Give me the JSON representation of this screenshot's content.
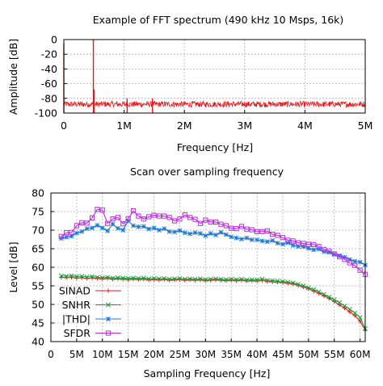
{
  "chart_data": [
    {
      "type": "line",
      "title": "Example of FFT spectrum (490 kHz 10 Msps, 16k)",
      "xlabel": "Frequency [Hz]",
      "ylabel": "Amplitude [dB]",
      "xlim": [
        0,
        5000000
      ],
      "ylim": [
        -100,
        0
      ],
      "x_ticks": [
        0,
        1000000,
        2000000,
        3000000,
        4000000,
        5000000
      ],
      "x_tick_labels": [
        "0",
        "1M",
        "2M",
        "3M",
        "4M",
        "5M"
      ],
      "y_ticks": [
        0,
        -20,
        -40,
        -60,
        -80,
        -100
      ],
      "y_tick_labels": [
        "0",
        "-20",
        "-40",
        "-60",
        "-80",
        "-100"
      ],
      "grid": true,
      "series": [
        {
          "color": "#e41a1c",
          "noise_floor_db": [
            -92,
            -84
          ],
          "spikes": [
            {
              "x": 0,
              "y": -5
            },
            {
              "x": 490000,
              "y": 0
            },
            {
              "x": 500000,
              "y": -68
            },
            {
              "x": 1050000,
              "y": -80
            },
            {
              "x": 1470000,
              "y": -80
            }
          ]
        }
      ]
    },
    {
      "type": "line",
      "title": "Scan over sampling frequency",
      "xlabel": "Sampling Frequency [Hz]",
      "ylabel": "Level [dB]",
      "xlim": [
        0,
        61000000
      ],
      "ylim": [
        40,
        80
      ],
      "x_ticks": [
        0,
        5000000,
        10000000,
        15000000,
        20000000,
        25000000,
        30000000,
        35000000,
        40000000,
        45000000,
        50000000,
        55000000,
        60000000
      ],
      "x_tick_labels": [
        "0",
        "5M",
        "10M",
        "15M",
        "20M",
        "25M",
        "30M",
        "35M",
        "40M",
        "45M",
        "50M",
        "55M",
        "60M"
      ],
      "y_ticks": [
        40,
        45,
        50,
        55,
        60,
        65,
        70,
        75,
        80
      ],
      "y_tick_labels": [
        "40",
        "45",
        "50",
        "55",
        "60",
        "65",
        "70",
        "75",
        "80"
      ],
      "grid": true,
      "legend_position": "bottom-left",
      "x": [
        2000000,
        3000000,
        4000000,
        5000000,
        6000000,
        7000000,
        8000000,
        9000000,
        10000000,
        11000000,
        12000000,
        13000000,
        14000000,
        15000000,
        16000000,
        17000000,
        18000000,
        19000000,
        20000000,
        21000000,
        22000000,
        23000000,
        24000000,
        25000000,
        26000000,
        27000000,
        28000000,
        29000000,
        30000000,
        31000000,
        32000000,
        33000000,
        34000000,
        35000000,
        36000000,
        37000000,
        38000000,
        39000000,
        40000000,
        41000000,
        42000000,
        43000000,
        44000000,
        45000000,
        46000000,
        47000000,
        48000000,
        49000000,
        50000000,
        51000000,
        52000000,
        53000000,
        54000000,
        55000000,
        56000000,
        57000000,
        58000000,
        59000000,
        60000000,
        61000000
      ],
      "series": [
        {
          "name": "SINAD",
          "color": "#e41a1c",
          "marker": "plus",
          "values": [
            57.3,
            57.2,
            57.3,
            57.1,
            57.2,
            57.0,
            57.1,
            57.0,
            56.9,
            57.0,
            56.8,
            56.9,
            56.8,
            56.7,
            56.8,
            56.7,
            56.8,
            56.6,
            56.7,
            56.6,
            56.7,
            56.5,
            56.6,
            56.7,
            56.5,
            56.6,
            56.5,
            56.6,
            56.4,
            56.5,
            56.6,
            56.5,
            56.4,
            56.5,
            56.4,
            56.5,
            56.3,
            56.4,
            56.3,
            56.5,
            56.2,
            56.1,
            56.0,
            55.9,
            55.7,
            55.5,
            55.1,
            54.7,
            54.2,
            53.6,
            53.0,
            52.3,
            51.6,
            50.8,
            49.9,
            49.0,
            48.0,
            47.0,
            45.5,
            43.0
          ]
        },
        {
          "name": "SNHR",
          "color": "#1b9e3a",
          "marker": "x",
          "values": [
            57.7,
            57.6,
            57.7,
            57.5,
            57.6,
            57.4,
            57.5,
            57.3,
            57.2,
            57.3,
            57.1,
            57.2,
            57.1,
            57.0,
            57.1,
            57.0,
            57.1,
            56.9,
            57.0,
            56.9,
            57.0,
            56.8,
            56.9,
            57.0,
            56.8,
            56.9,
            56.8,
            56.9,
            56.7,
            56.8,
            56.9,
            56.8,
            56.7,
            56.8,
            56.7,
            56.8,
            56.6,
            56.7,
            56.6,
            56.8,
            56.5,
            56.4,
            56.3,
            56.2,
            56.0,
            55.8,
            55.4,
            55.0,
            54.5,
            54.0,
            53.4,
            52.7,
            52.0,
            51.3,
            50.5,
            49.6,
            48.7,
            47.7,
            46.5,
            43.5
          ]
        },
        {
          "name": "|THD|",
          "color": "#1f78d1",
          "marker": "star",
          "values": [
            67.8,
            68.1,
            68.4,
            69.2,
            69.6,
            70.4,
            70.6,
            71.3,
            70.6,
            69.8,
            71.6,
            70.5,
            70.0,
            72.5,
            71.2,
            70.9,
            71.0,
            70.3,
            70.6,
            70.0,
            70.4,
            69.6,
            69.5,
            69.9,
            69.3,
            69.0,
            69.3,
            69.1,
            68.5,
            69.1,
            68.7,
            69.4,
            68.8,
            68.2,
            67.9,
            67.6,
            67.9,
            67.4,
            67.4,
            67.1,
            66.9,
            67.2,
            66.5,
            66.2,
            66.6,
            65.9,
            65.6,
            65.6,
            65.1,
            64.7,
            64.9,
            64.2,
            64.0,
            63.5,
            63.1,
            62.7,
            62.1,
            61.6,
            61.4,
            60.6
          ]
        },
        {
          "name": "SFDR",
          "color": "#b82ee0",
          "marker": "square",
          "values": [
            68.3,
            69.3,
            69.4,
            71.2,
            72.0,
            71.9,
            73.3,
            75.6,
            75.4,
            71.8,
            73.0,
            73.4,
            71.7,
            73.1,
            75.2,
            73.8,
            73.0,
            73.6,
            74.0,
            73.8,
            73.8,
            73.4,
            72.5,
            73.0,
            74.1,
            73.4,
            72.9,
            71.8,
            72.7,
            72.2,
            72.2,
            71.6,
            71.2,
            70.5,
            70.4,
            71.0,
            70.3,
            70.1,
            69.6,
            69.6,
            69.8,
            68.9,
            68.6,
            68.0,
            67.3,
            67.1,
            66.6,
            66.4,
            66.2,
            66.1,
            65.6,
            64.8,
            64.4,
            63.6,
            62.9,
            62.1,
            61.2,
            60.5,
            59.2,
            58.1
          ]
        }
      ]
    }
  ]
}
